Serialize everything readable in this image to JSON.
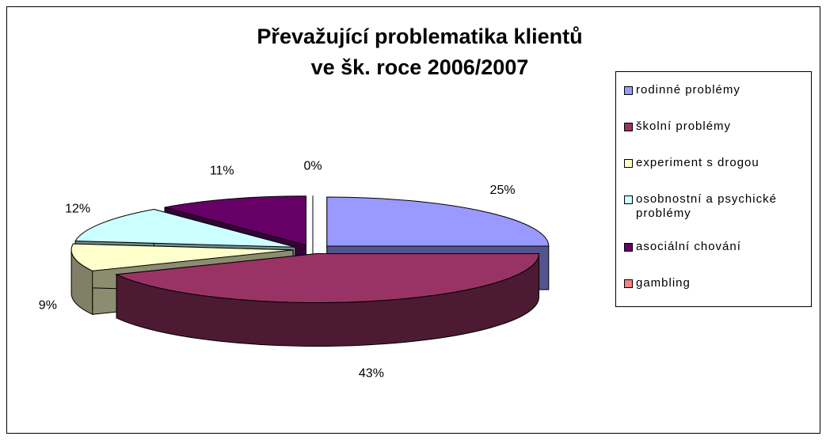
{
  "chart_data": {
    "type": "pie3d",
    "title": [
      "Převažující problematika klientů",
      "ve šk. roce 2006/2007"
    ],
    "categories": [
      "rodinné problémy",
      "školní problémy",
      "experiment s drogou",
      "osobnostní a psychické problémy",
      "asociální chování",
      "gambling"
    ],
    "values": [
      25,
      43,
      9,
      12,
      11,
      0
    ],
    "value_labels": [
      "25%",
      "43%",
      "9%",
      "12%",
      "11%",
      "0%"
    ],
    "colors": [
      "#9999ff",
      "#993366",
      "#ffffcc",
      "#ccffff",
      "#660066",
      "#ff8080"
    ],
    "legend": "right"
  }
}
